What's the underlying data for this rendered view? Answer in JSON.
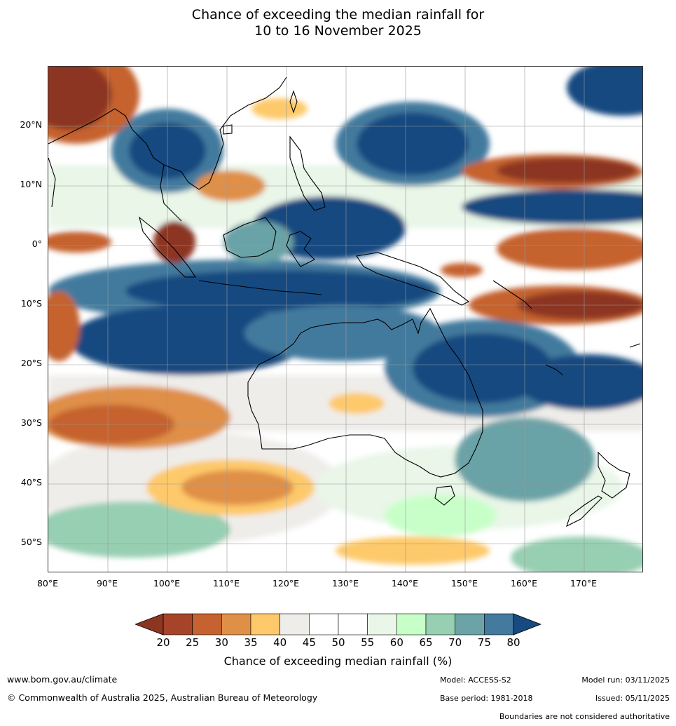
{
  "title": {
    "line1": "Chance of exceeding the median rainfall for",
    "line2": "10 to 16 November 2025"
  },
  "map": {
    "lon_labels": [
      "80°E",
      "90°E",
      "100°E",
      "110°E",
      "120°E",
      "130°E",
      "140°E",
      "150°E",
      "160°E",
      "170°E"
    ],
    "lat_labels": [
      "20°N",
      "10°N",
      "0°",
      "10°S",
      "20°S",
      "30°S",
      "40°S",
      "50°S"
    ],
    "extent": {
      "lon_min": 80,
      "lon_max": 180,
      "lat_min": -55,
      "lat_max": 30
    }
  },
  "colorbar": {
    "ticks": [
      "20",
      "25",
      "30",
      "35",
      "40",
      "45",
      "50",
      "55",
      "60",
      "65",
      "70",
      "75",
      "80"
    ],
    "colors": [
      "#a6442a",
      "#c5622f",
      "#df8f46",
      "#fdc96b",
      "#efedea",
      "#ffffff",
      "#ffffff",
      "#e9f6e8",
      "#c8ffc8",
      "#97cfb2",
      "#6ba3a7",
      "#437a9e"
    ],
    "under_color": "#8c3520",
    "over_color": "#164a80",
    "label": "Chance of exceeding median rainfall (%)"
  },
  "footer": {
    "website": "www.bom.gov.au/climate",
    "copyright": "© Commonwealth of Australia 2025, Australian Bureau of Meteorology",
    "model": "Model: ACCESS-S2",
    "base_period": "Base period: 1981-2018",
    "model_run": "Model run: 03/11/2025",
    "issued": "Issued: 05/11/2025",
    "disclaimer": "Boundaries are not considered authoritative"
  }
}
